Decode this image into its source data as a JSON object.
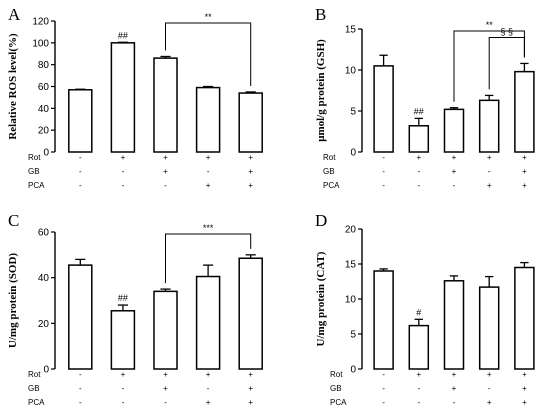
{
  "figure": {
    "conditions": [
      {
        "name": "Rot",
        "signs": [
          "-",
          "+",
          "+",
          "+",
          "+"
        ]
      },
      {
        "name": "GB",
        "signs": [
          "-",
          "-",
          "+",
          "-",
          "+"
        ]
      },
      {
        "name": "PCA",
        "signs": [
          "-",
          "-",
          "-",
          "+",
          "+"
        ]
      }
    ]
  },
  "chart_data": [
    {
      "type": "bar",
      "panel": "A",
      "ylabel": "Relative ROS level(%)",
      "ylim": [
        0,
        120
      ],
      "yticks": [
        0,
        20,
        40,
        60,
        80,
        100,
        120
      ],
      "values": [
        57,
        100,
        86,
        59,
        54
      ],
      "errors": [
        0.5,
        0.5,
        1.5,
        1.0,
        1.0
      ],
      "bar_marks": [
        "",
        "##",
        "",
        "",
        ""
      ],
      "brackets": [
        {
          "from": 2,
          "to": 4,
          "label": "**"
        }
      ],
      "grid": false
    },
    {
      "type": "bar",
      "panel": "B",
      "ylabel": "μmol/g protein (GSH)",
      "ylim": [
        0,
        15
      ],
      "yticks": [
        0,
        5,
        10,
        15
      ],
      "values": [
        10.5,
        3.2,
        5.2,
        6.3,
        9.8
      ],
      "errors": [
        1.3,
        0.9,
        0.2,
        0.6,
        1.0
      ],
      "bar_marks": [
        "",
        "##",
        "",
        "",
        ""
      ],
      "brackets": [
        {
          "from": 2,
          "to": 4,
          "label": "**"
        },
        {
          "from": 3,
          "to": 4,
          "label": "§ §"
        }
      ],
      "grid": false
    },
    {
      "type": "bar",
      "panel": "C",
      "ylabel": "U/mg protein (SOD)",
      "ylim": [
        0,
        60
      ],
      "yticks": [
        0,
        20,
        40,
        60
      ],
      "values": [
        45.5,
        25.5,
        34,
        40.5,
        48.5
      ],
      "errors": [
        2.5,
        2.5,
        1.0,
        5.0,
        1.5
      ],
      "bar_marks": [
        "",
        "##",
        "",
        "",
        ""
      ],
      "brackets": [
        {
          "from": 2,
          "to": 4,
          "label": "***"
        }
      ],
      "grid": false
    },
    {
      "type": "bar",
      "panel": "D",
      "ylabel": "U/mg protein (CAT)",
      "ylim": [
        0,
        20
      ],
      "yticks": [
        0,
        5,
        10,
        15,
        20
      ],
      "values": [
        14.0,
        6.2,
        12.6,
        11.7,
        14.5
      ],
      "errors": [
        0.3,
        0.9,
        0.7,
        1.5,
        0.7
      ],
      "bar_marks": [
        "",
        "#",
        "",
        "",
        ""
      ],
      "brackets": [],
      "grid": false
    }
  ]
}
